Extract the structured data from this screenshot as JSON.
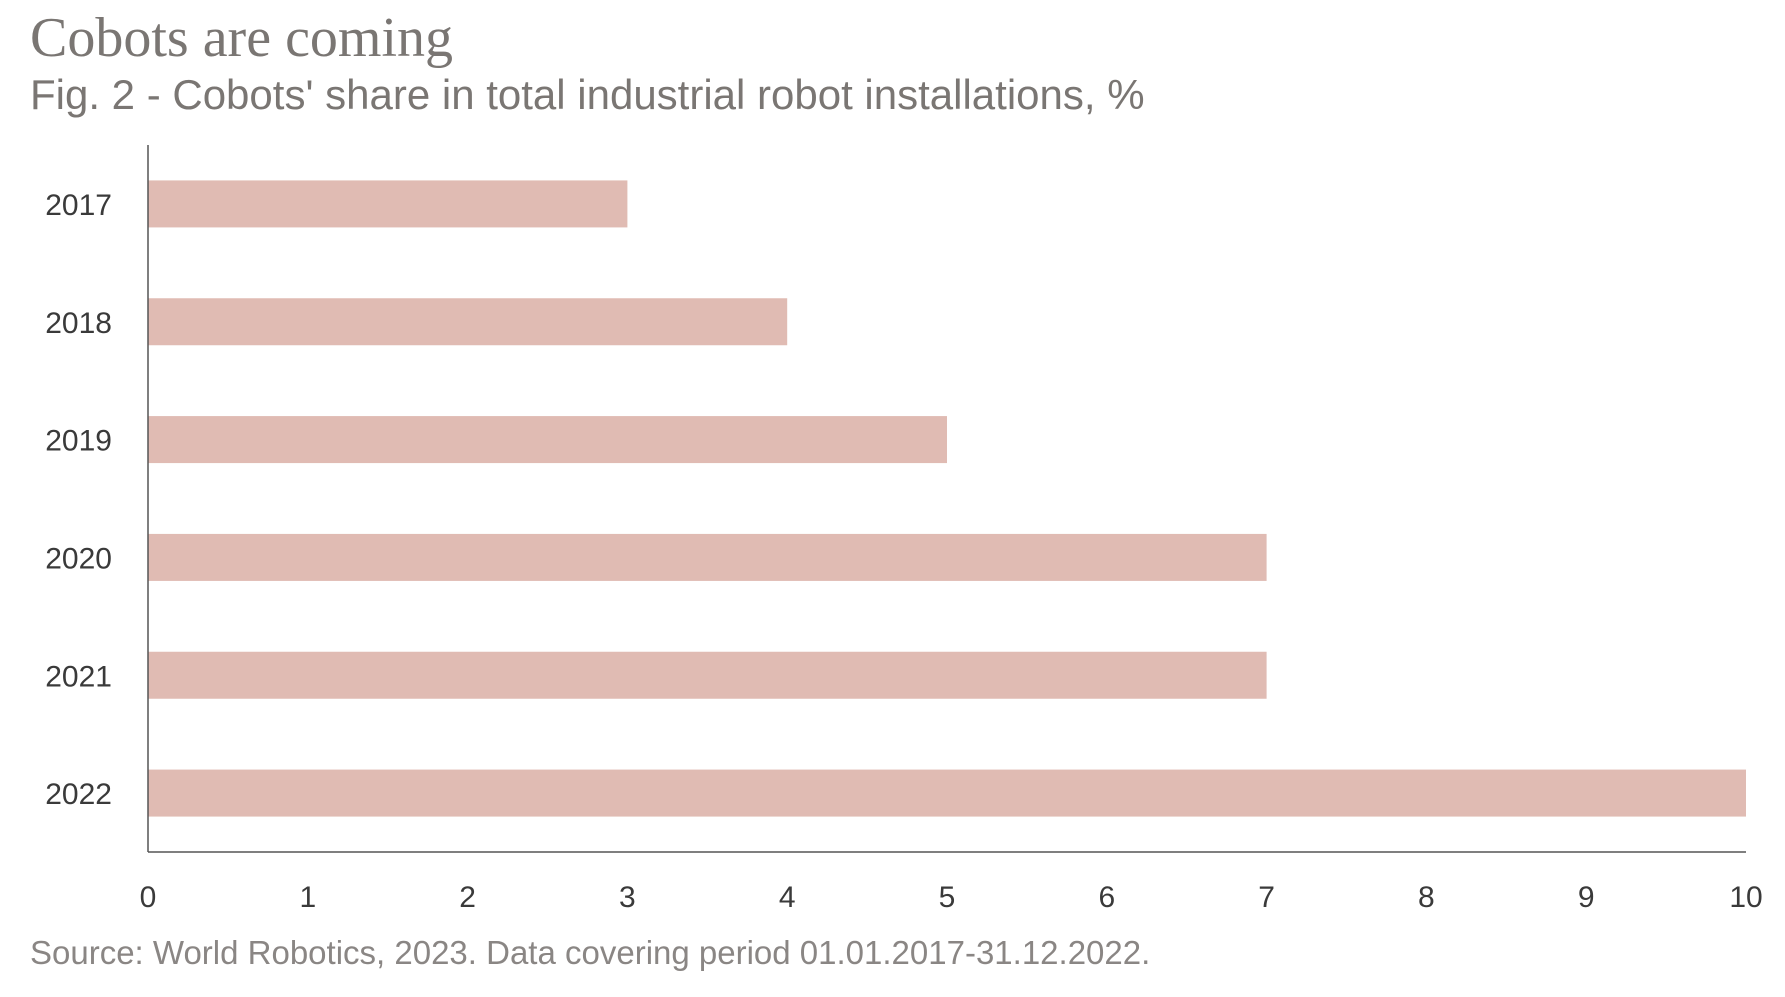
{
  "chart_data": {
    "type": "bar",
    "orientation": "horizontal",
    "title": "Cobots are coming",
    "subtitle": "Fig. 2 - Cobots' share in total industrial robot installations, %",
    "source": "Source: World Robotics, 2023. Data covering period 01.01.2017-31.12.2022.",
    "categories": [
      "2017",
      "2018",
      "2019",
      "2020",
      "2021",
      "2022"
    ],
    "values": [
      3,
      4,
      5,
      7,
      7,
      10
    ],
    "xlim": [
      0,
      10
    ],
    "xticks": [
      0,
      1,
      2,
      3,
      4,
      5,
      6,
      7,
      8,
      9,
      10
    ],
    "grid": false,
    "legend": "none",
    "bar_color": "#e0bbb3"
  }
}
